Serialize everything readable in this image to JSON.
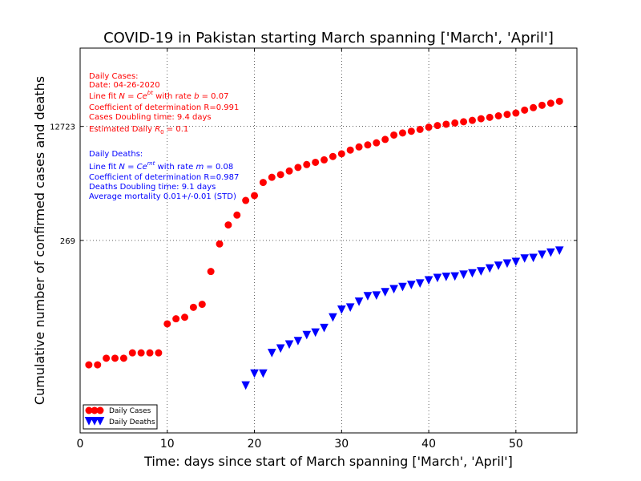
{
  "chart_data": {
    "type": "scatter",
    "title": "COVID-19 in Pakistan starting March spanning ['March', 'April']",
    "xlabel": "Time: days since start of March spanning ['March', 'April']",
    "ylabel": "Cumulative number of confirmed cases and deaths",
    "xlim": [
      0,
      57
    ],
    "ylim": [
      0.4,
      180000
    ],
    "yscale": "log",
    "xticks": [
      0,
      10,
      20,
      30,
      40,
      50
    ],
    "yticks": [
      269,
      12723
    ],
    "grid": true,
    "legend_position": "lower-left",
    "series": [
      {
        "name": "Daily Cases",
        "color": "#ff0000",
        "marker": "circle",
        "x": [
          1,
          2,
          3,
          4,
          5,
          6,
          7,
          8,
          9,
          10,
          11,
          12,
          13,
          14,
          15,
          16,
          17,
          18,
          19,
          20,
          21,
          22,
          23,
          24,
          25,
          26,
          27,
          28,
          29,
          30,
          31,
          32,
          33,
          34,
          35,
          36,
          37,
          38,
          39,
          40,
          41,
          42,
          43,
          44,
          45,
          46,
          47,
          48,
          49,
          50,
          51,
          52,
          53,
          54,
          55
        ],
        "y": [
          4,
          4,
          5,
          5,
          5,
          6,
          6,
          6,
          6,
          16,
          19,
          20,
          28,
          31,
          94,
          239,
          454,
          634,
          1040,
          1227,
          1911,
          2276,
          2490,
          2818,
          3181,
          3503,
          3780,
          4108,
          4600,
          5041,
          5717,
          6353,
          6800,
          7300,
          8200,
          9500,
          10200,
          10800,
          11500,
          12400,
          13100,
          13700,
          14300,
          14900,
          15600,
          16500,
          17300,
          18200,
          19100,
          20000,
          22100,
          24000,
          26000,
          27900,
          29800
        ]
      },
      {
        "name": "Daily Deaths",
        "color": "#0000ff",
        "marker": "triangle-down",
        "x": [
          19,
          20,
          21,
          22,
          23,
          24,
          25,
          26,
          27,
          28,
          29,
          30,
          31,
          32,
          33,
          34,
          35,
          36,
          37,
          38,
          39,
          40,
          41,
          42,
          43,
          44,
          45,
          46,
          47,
          48,
          49,
          50,
          51,
          52,
          53,
          54,
          55
        ],
        "y": [
          2,
          3,
          3,
          6,
          7,
          8,
          9,
          11,
          12,
          14,
          20,
          26,
          28,
          34,
          41,
          42,
          47,
          52,
          56,
          60,
          63,
          70,
          76,
          79,
          80,
          85,
          89,
          95,
          105,
          115,
          124,
          131,
          147,
          150,
          167,
          179,
          192
        ]
      }
    ],
    "annotations_cases": [
      "Daily Cases:",
      "Date: 04-26-2020",
      "Line fit N = Ce^{bt} with rate b = 0.07",
      "Coefficient of determination R=0.991",
      "Cases Doubling time: 9.4 days",
      "Estimated Daily R0 = 0.1"
    ],
    "annotations_deaths": [
      "Daily Deaths:",
      "Line fit N = Ce^{mt} with rate m = 0.08",
      "Coefficient of determination R=0.987",
      "Deaths Doubling time: 9.1 days",
      "Average mortality 0.01+/-0.01 (STD)"
    ]
  }
}
